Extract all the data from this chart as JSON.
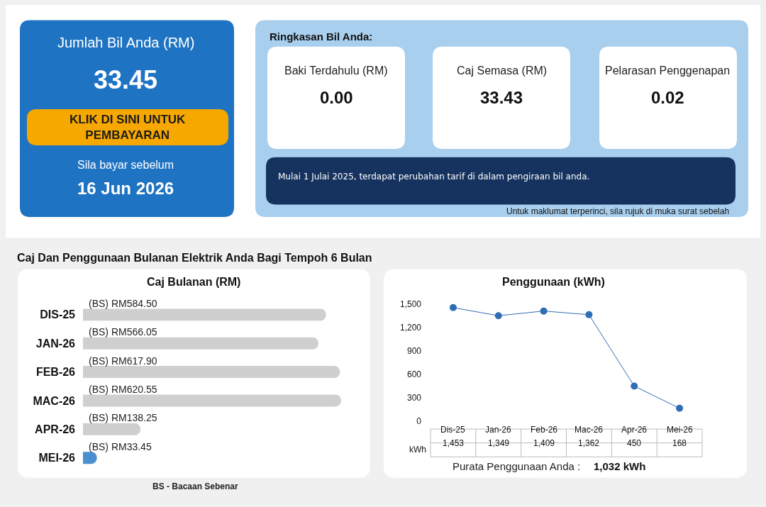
{
  "chart_data": [
    {
      "type": "other",
      "annotations": [
        "Jumlah Bil Anda (RM)",
        "33.45",
        "KLIK DI SINI UNTUK PEMBAYARAN",
        "Sila bayar sebelum",
        "16 Jun 2026",
        "Ringkasan Bil Anda:",
        "Baki Terdahulu (RM)",
        "0.00",
        "Caj Semasa (RM)",
        "33.43",
        "Pelarasan Penggenapan",
        "0.02",
        "Mulai 1 Julai 2025, terdapat perubahan tarif di dalam pengiraan bil anda.",
        "Untuk maklumat terperinci, sila rujuk di muka surat sebelah",
        "Caj Dan Penggunaan Bulanan Elektrik Anda Bagi Tempoh 6 Bulan"
      ]
    },
    {
      "type": "bar",
      "orientation": "horizontal",
      "title": "Caj Bulanan (RM)",
      "categories": [
        "DIS-25",
        "JAN-26",
        "FEB-26",
        "MAC-26",
        "APR-26",
        "MEI-26"
      ],
      "values": [
        584.5,
        566.05,
        617.9,
        620.55,
        138.25,
        33.45
      ],
      "colors": [
        "#cfcfcf",
        "#cfcfcf",
        "#cfcfcf",
        "#cfcfcf",
        "#cfcfcf",
        "#4a8fd0"
      ],
      "value_labels": [
        "(BS) RM584.50",
        "(BS) RM566.05",
        "(BS) RM617.90",
        "(BS) RM620.55",
        "(BS) RM138.25",
        "(BS) RM33.45"
      ],
      "annotations": [
        "BS - Bacaan Sebenar"
      ]
    },
    {
      "type": "line",
      "title": "Penggunaan (kWh)",
      "categories": [
        "Dis-25",
        "Jan-26",
        "Feb-26",
        "Mac-26",
        "Apr-26",
        "Mei-26"
      ],
      "values": [
        1453,
        1349,
        1409,
        1362,
        450,
        168
      ],
      "color": "#2f6db5",
      "marker": "circle",
      "line_style": "solid",
      "ylim": [
        0,
        1500
      ],
      "yticks": [
        0,
        300,
        600,
        900,
        {
          "value": 1200,
          "label": "1,200"
        },
        {
          "value": 1500,
          "label": "1,500"
        }
      ],
      "value_labels": [
        "1,453",
        "1,349",
        "1,409",
        "1,362",
        "450",
        "168"
      ],
      "annotations": [
        "kWh",
        "Purata Penggunaan Anda :",
        "1,032 kWh"
      ]
    }
  ]
}
